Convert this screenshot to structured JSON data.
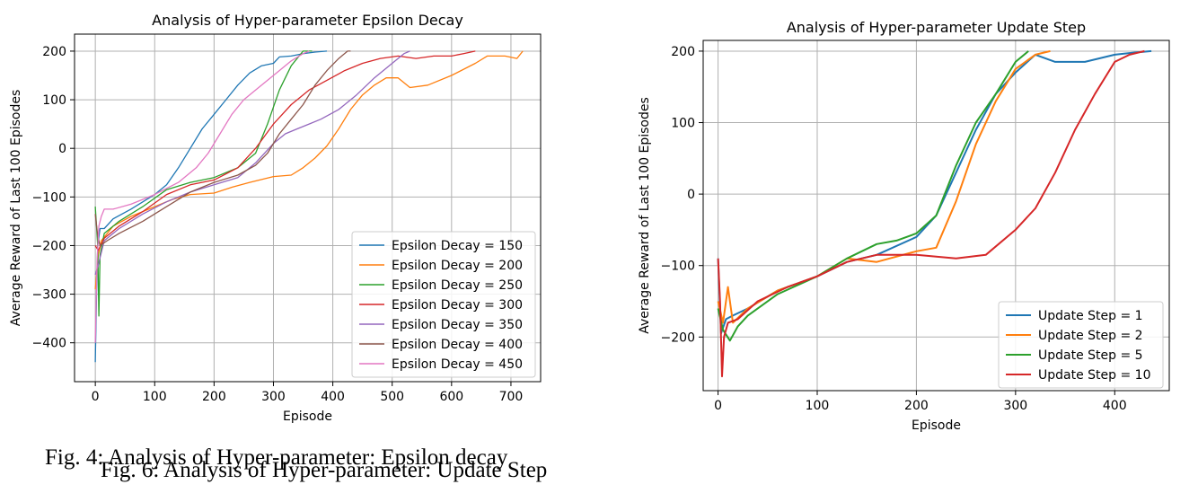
{
  "figures": {
    "left_caption": "Fig. 4: Analysis of Hyper-parameter: Epsilon decay",
    "right_caption": "Fig. 6: Analysis of Hyper-parameter: Update Step"
  },
  "chart_data": [
    {
      "type": "line",
      "title": "Analysis of Hyper-parameter Epsilon Decay",
      "xlabel": "Episode",
      "ylabel": "Average Reward of Last 100 Episodes",
      "xlim": [
        -35,
        750
      ],
      "ylim": [
        -480,
        235
      ],
      "xticks": [
        0,
        100,
        200,
        300,
        400,
        500,
        600,
        700
      ],
      "yticks": [
        -400,
        -300,
        -200,
        -100,
        0,
        100,
        200
      ],
      "grid": true,
      "legend_position": "lower-right",
      "series": [
        {
          "name": "Epsilon Decay = 150",
          "color": "#1f77b4",
          "points": [
            [
              0,
              -440
            ],
            [
              2,
              -300
            ],
            [
              4,
              -200
            ],
            [
              8,
              -165
            ],
            [
              15,
              -165
            ],
            [
              30,
              -145
            ],
            [
              60,
              -125
            ],
            [
              100,
              -95
            ],
            [
              120,
              -75
            ],
            [
              140,
              -40
            ],
            [
              160,
              0
            ],
            [
              180,
              40
            ],
            [
              200,
              70
            ],
            [
              220,
              100
            ],
            [
              240,
              130
            ],
            [
              260,
              155
            ],
            [
              280,
              170
            ],
            [
              300,
              175
            ],
            [
              310,
              188
            ],
            [
              330,
              190
            ],
            [
              350,
              195
            ],
            [
              370,
              198
            ],
            [
              390,
              200
            ]
          ]
        },
        {
          "name": "Epsilon Decay = 200",
          "color": "#ff7f0e",
          "points": [
            [
              0,
              -290
            ],
            [
              5,
              -220
            ],
            [
              10,
              -190
            ],
            [
              30,
              -160
            ],
            [
              60,
              -140
            ],
            [
              100,
              -120
            ],
            [
              130,
              -105
            ],
            [
              160,
              -95
            ],
            [
              200,
              -92
            ],
            [
              230,
              -80
            ],
            [
              260,
              -70
            ],
            [
              300,
              -58
            ],
            [
              330,
              -55
            ],
            [
              350,
              -40
            ],
            [
              370,
              -20
            ],
            [
              390,
              5
            ],
            [
              410,
              40
            ],
            [
              430,
              80
            ],
            [
              450,
              110
            ],
            [
              470,
              130
            ],
            [
              490,
              145
            ],
            [
              510,
              145
            ],
            [
              530,
              125
            ],
            [
              560,
              130
            ],
            [
              600,
              150
            ],
            [
              640,
              175
            ],
            [
              660,
              190
            ],
            [
              690,
              190
            ],
            [
              710,
              185
            ],
            [
              720,
              200
            ]
          ]
        },
        {
          "name": "Epsilon Decay = 250",
          "color": "#2ca02c",
          "points": [
            [
              0,
              -120
            ],
            [
              4,
              -200
            ],
            [
              6,
              -345
            ],
            [
              8,
              -220
            ],
            [
              15,
              -175
            ],
            [
              40,
              -150
            ],
            [
              80,
              -120
            ],
            [
              120,
              -85
            ],
            [
              160,
              -70
            ],
            [
              200,
              -60
            ],
            [
              240,
              -40
            ],
            [
              270,
              -10
            ],
            [
              290,
              50
            ],
            [
              310,
              120
            ],
            [
              330,
              170
            ],
            [
              350,
              200
            ],
            [
              365,
              200
            ]
          ]
        },
        {
          "name": "Epsilon Decay = 300",
          "color": "#d62728",
          "points": [
            [
              0,
              -200
            ],
            [
              5,
              -210
            ],
            [
              15,
              -185
            ],
            [
              40,
              -160
            ],
            [
              80,
              -130
            ],
            [
              120,
              -95
            ],
            [
              160,
              -75
            ],
            [
              200,
              -65
            ],
            [
              240,
              -40
            ],
            [
              270,
              0
            ],
            [
              300,
              50
            ],
            [
              330,
              90
            ],
            [
              360,
              120
            ],
            [
              390,
              140
            ],
            [
              420,
              160
            ],
            [
              450,
              175
            ],
            [
              480,
              185
            ],
            [
              510,
              190
            ],
            [
              540,
              185
            ],
            [
              570,
              190
            ],
            [
              600,
              190
            ],
            [
              620,
              195
            ],
            [
              640,
              200
            ]
          ]
        },
        {
          "name": "Epsilon Decay = 350",
          "color": "#9467bd",
          "points": [
            [
              0,
              -260
            ],
            [
              5,
              -240
            ],
            [
              15,
              -190
            ],
            [
              40,
              -165
            ],
            [
              80,
              -135
            ],
            [
              120,
              -110
            ],
            [
              160,
              -90
            ],
            [
              200,
              -75
            ],
            [
              240,
              -60
            ],
            [
              270,
              -30
            ],
            [
              300,
              10
            ],
            [
              320,
              30
            ],
            [
              340,
              40
            ],
            [
              360,
              50
            ],
            [
              380,
              60
            ],
            [
              410,
              80
            ],
            [
              440,
              110
            ],
            [
              470,
              145
            ],
            [
              500,
              175
            ],
            [
              520,
              195
            ],
            [
              530,
              200
            ]
          ]
        },
        {
          "name": "Epsilon Decay = 400",
          "color": "#8c564b",
          "points": [
            [
              0,
              -135
            ],
            [
              4,
              -180
            ],
            [
              8,
              -200
            ],
            [
              20,
              -190
            ],
            [
              40,
              -175
            ],
            [
              80,
              -150
            ],
            [
              120,
              -120
            ],
            [
              160,
              -90
            ],
            [
              200,
              -70
            ],
            [
              240,
              -55
            ],
            [
              270,
              -35
            ],
            [
              290,
              -10
            ],
            [
              310,
              30
            ],
            [
              330,
              60
            ],
            [
              350,
              90
            ],
            [
              370,
              130
            ],
            [
              390,
              160
            ],
            [
              410,
              185
            ],
            [
              425,
              200
            ],
            [
              430,
              200
            ]
          ]
        },
        {
          "name": "Epsilon Decay = 450",
          "color": "#e377c2",
          "points": [
            [
              0,
              -400
            ],
            [
              3,
              -230
            ],
            [
              6,
              -160
            ],
            [
              10,
              -140
            ],
            [
              15,
              -125
            ],
            [
              30,
              -125
            ],
            [
              60,
              -115
            ],
            [
              100,
              -95
            ],
            [
              140,
              -70
            ],
            [
              170,
              -40
            ],
            [
              190,
              -10
            ],
            [
              210,
              30
            ],
            [
              230,
              70
            ],
            [
              250,
              100
            ],
            [
              270,
              120
            ],
            [
              290,
              140
            ],
            [
              310,
              160
            ],
            [
              330,
              180
            ],
            [
              350,
              195
            ],
            [
              360,
              200
            ]
          ]
        }
      ]
    },
    {
      "type": "line",
      "title": "Analysis of Hyper-parameter Update Step",
      "xlabel": "Episode",
      "ylabel": "Average Reward of Last 100 Episodes",
      "xlim": [
        -15,
        455
      ],
      "ylim": [
        -275,
        215
      ],
      "xticks": [
        0,
        100,
        200,
        300,
        400
      ],
      "yticks": [
        -200,
        -100,
        0,
        100,
        200
      ],
      "grid": true,
      "legend_position": "lower-right",
      "series": [
        {
          "name": "Update Step = 1",
          "color": "#1f77b4",
          "points": [
            [
              0,
              -90
            ],
            [
              3,
              -195
            ],
            [
              8,
              -175
            ],
            [
              15,
              -170
            ],
            [
              30,
              -160
            ],
            [
              60,
              -135
            ],
            [
              100,
              -115
            ],
            [
              130,
              -95
            ],
            [
              160,
              -85
            ],
            [
              200,
              -60
            ],
            [
              220,
              -30
            ],
            [
              240,
              30
            ],
            [
              260,
              90
            ],
            [
              280,
              140
            ],
            [
              300,
              170
            ],
            [
              320,
              195
            ],
            [
              340,
              185
            ],
            [
              370,
              185
            ],
            [
              400,
              195
            ],
            [
              420,
              198
            ],
            [
              437,
              200
            ]
          ]
        },
        {
          "name": "Update Step = 2",
          "color": "#ff7f0e",
          "points": [
            [
              0,
              -150
            ],
            [
              5,
              -180
            ],
            [
              10,
              -130
            ],
            [
              15,
              -180
            ],
            [
              30,
              -160
            ],
            [
              60,
              -135
            ],
            [
              100,
              -115
            ],
            [
              130,
              -90
            ],
            [
              160,
              -95
            ],
            [
              200,
              -80
            ],
            [
              220,
              -75
            ],
            [
              240,
              -10
            ],
            [
              260,
              70
            ],
            [
              280,
              130
            ],
            [
              300,
              175
            ],
            [
              320,
              195
            ],
            [
              335,
              200
            ]
          ]
        },
        {
          "name": "Update Step = 5",
          "color": "#2ca02c",
          "points": [
            [
              0,
              -160
            ],
            [
              5,
              -190
            ],
            [
              12,
              -205
            ],
            [
              20,
              -185
            ],
            [
              30,
              -170
            ],
            [
              60,
              -140
            ],
            [
              100,
              -115
            ],
            [
              130,
              -90
            ],
            [
              160,
              -70
            ],
            [
              180,
              -65
            ],
            [
              200,
              -55
            ],
            [
              220,
              -30
            ],
            [
              240,
              40
            ],
            [
              260,
              100
            ],
            [
              280,
              140
            ],
            [
              300,
              185
            ],
            [
              313,
              200
            ]
          ]
        },
        {
          "name": "Update Step = 10",
          "color": "#d62728",
          "points": [
            [
              0,
              -90
            ],
            [
              2,
              -150
            ],
            [
              4,
              -255
            ],
            [
              6,
              -200
            ],
            [
              10,
              -180
            ],
            [
              20,
              -175
            ],
            [
              40,
              -150
            ],
            [
              70,
              -130
            ],
            [
              100,
              -115
            ],
            [
              130,
              -95
            ],
            [
              160,
              -85
            ],
            [
              200,
              -85
            ],
            [
              240,
              -90
            ],
            [
              270,
              -85
            ],
            [
              300,
              -50
            ],
            [
              320,
              -20
            ],
            [
              340,
              30
            ],
            [
              360,
              90
            ],
            [
              380,
              140
            ],
            [
              400,
              185
            ],
            [
              415,
              195
            ],
            [
              430,
              200
            ]
          ]
        }
      ]
    }
  ]
}
